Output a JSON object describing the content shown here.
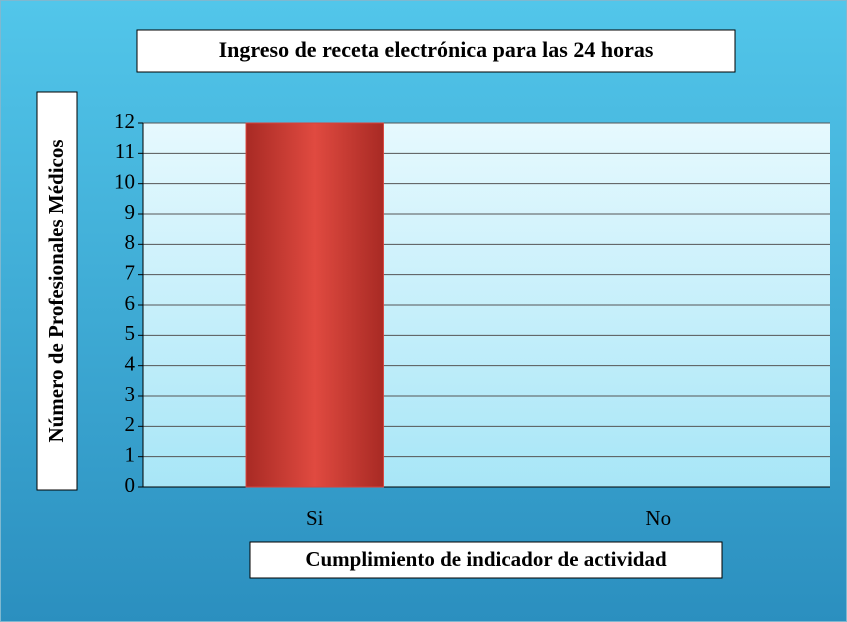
{
  "chart_data": {
    "type": "bar",
    "title": "Ingreso de receta electrónica para las 24 horas",
    "x_label": "Cumplimiento de indicador de actividad",
    "y_label": "Número de Profesionales Médicos",
    "categories": [
      "Si",
      "No"
    ],
    "values": [
      12,
      0
    ],
    "color": "#d8423a",
    "ylim": [
      0,
      12
    ],
    "yticks": [
      0,
      1,
      2,
      3,
      4,
      5,
      6,
      7,
      8,
      9,
      10,
      11,
      12
    ],
    "grid": true
  }
}
